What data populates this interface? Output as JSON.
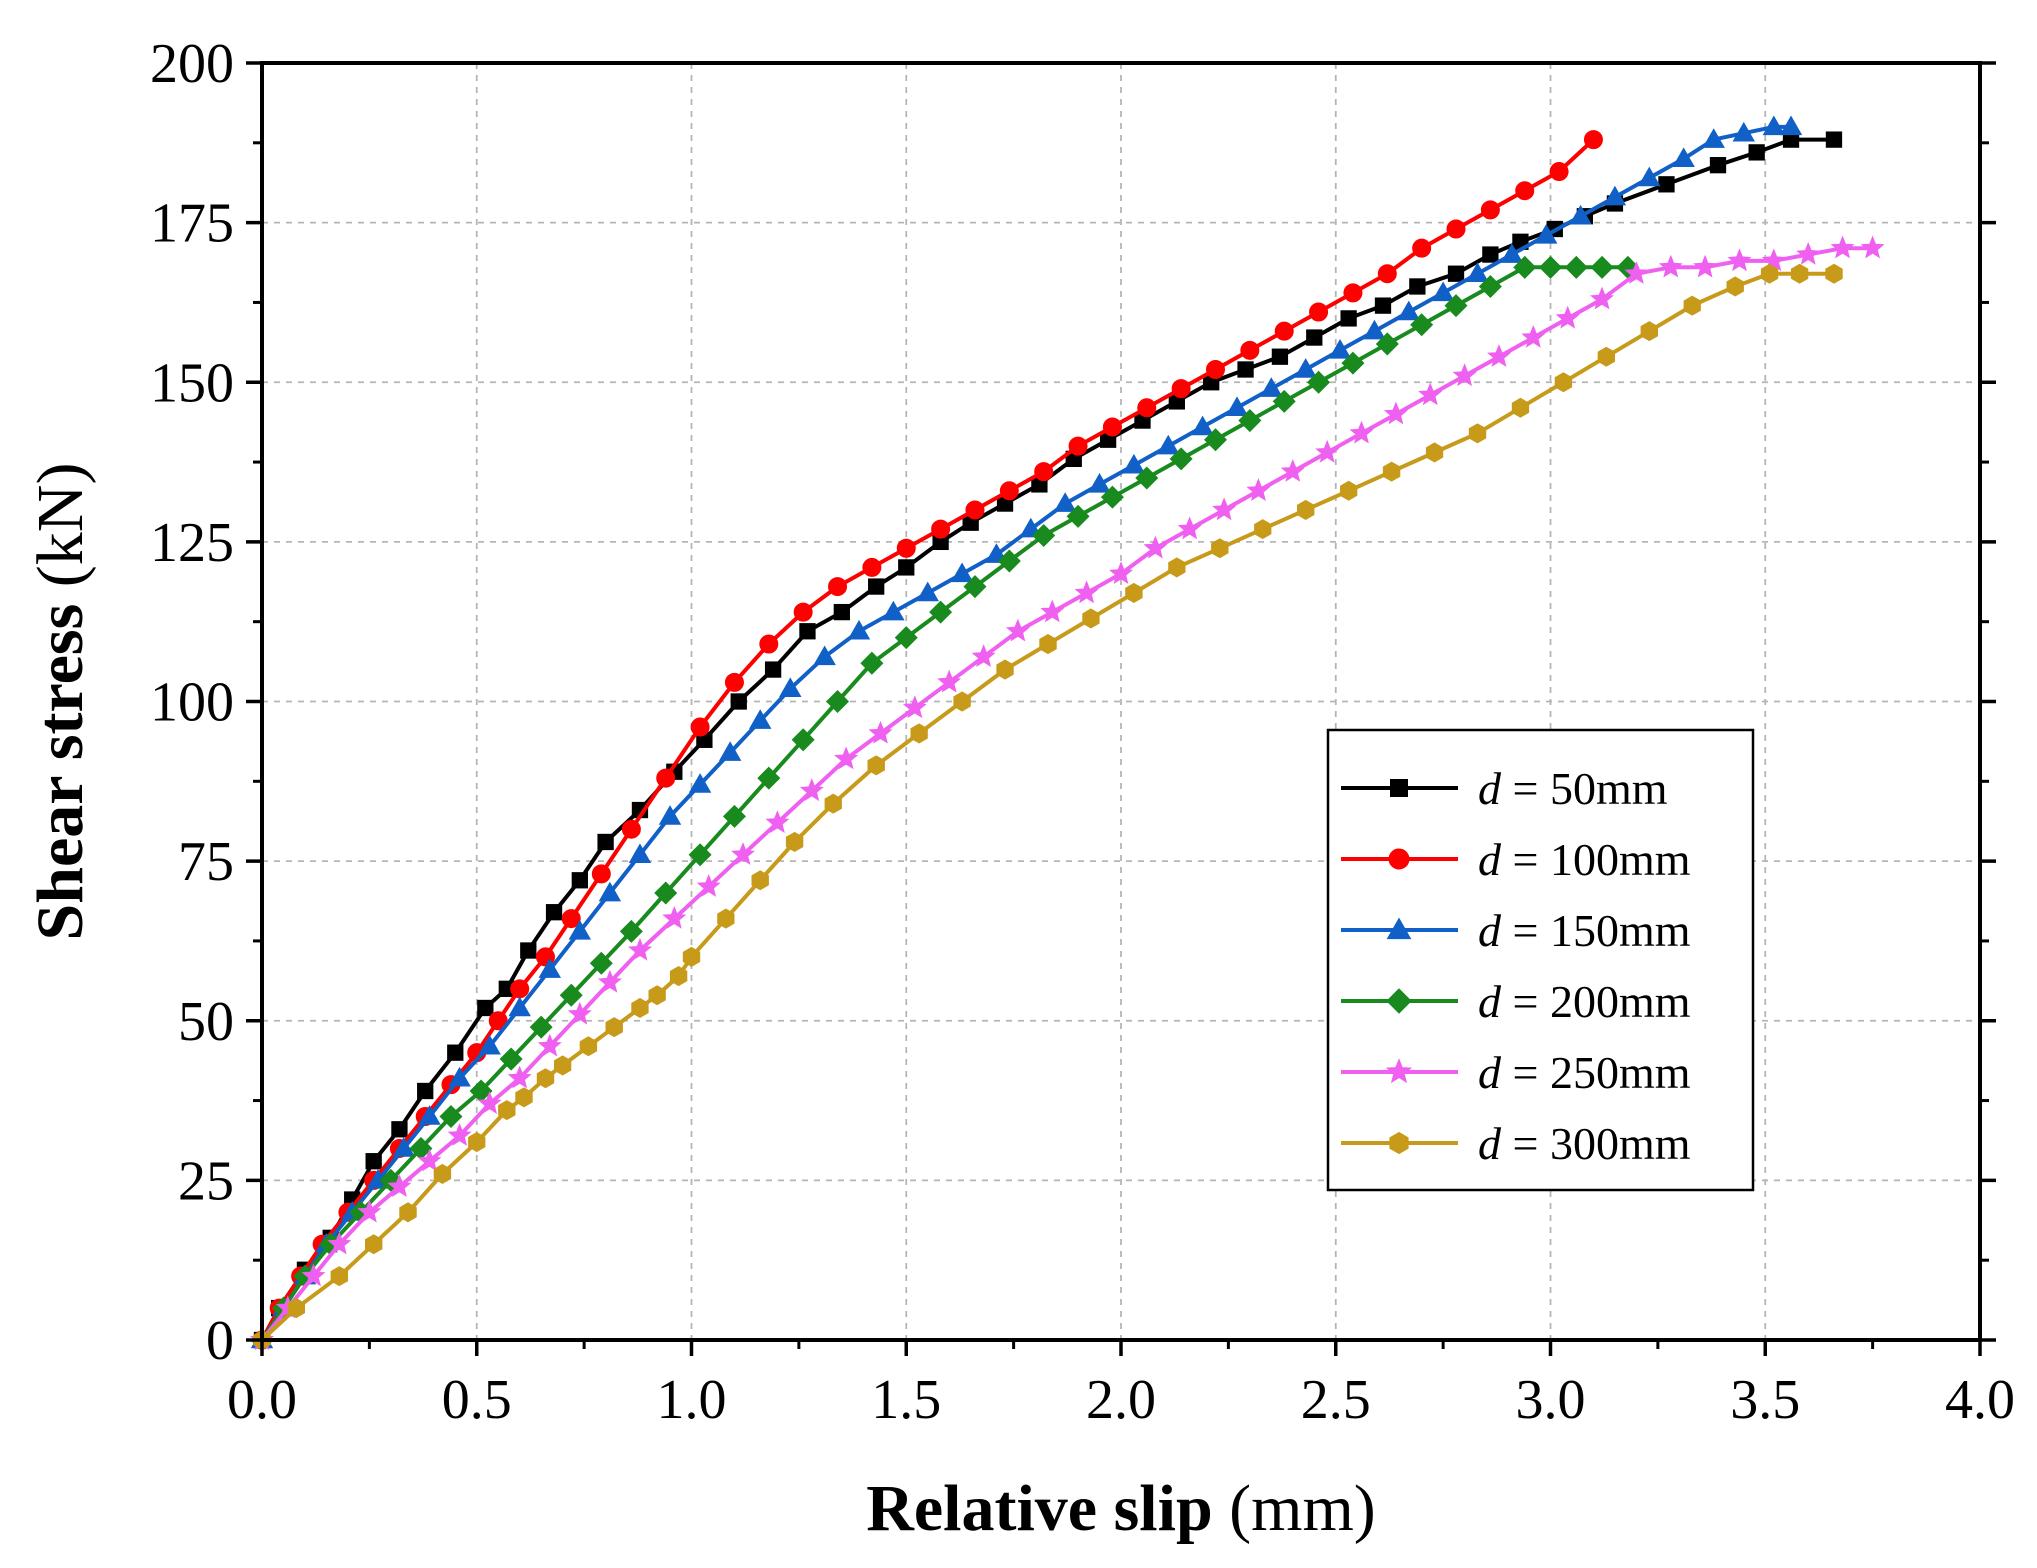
{
  "chart_data": {
    "type": "line",
    "title": "",
    "xlabel_bold": "Relative slip",
    "xlabel_unit": " (mm)",
    "ylabel_bold": "Shear stress",
    "ylabel_unit": " (kN)",
    "xlim": [
      0,
      4.0
    ],
    "ylim": [
      0,
      200
    ],
    "x_ticks": [
      0,
      0.5,
      1.0,
      1.5,
      2.0,
      2.5,
      3.0,
      3.5,
      4.0
    ],
    "x_tick_labels": [
      "0.0",
      "0.5",
      "1.0",
      "1.5",
      "2.0",
      "2.5",
      "3.0",
      "3.5",
      "4.0"
    ],
    "y_ticks": [
      0,
      25,
      50,
      75,
      100,
      125,
      150,
      175,
      200
    ],
    "y_tick_labels": [
      "0",
      "25",
      "50",
      "75",
      "100",
      "125",
      "150",
      "175",
      "200"
    ],
    "grid": true,
    "legend_position": "center-right",
    "series": [
      {
        "name": "d = 50mm",
        "var": "d",
        "rest": " = 50mm",
        "color": "#000000",
        "marker": "square",
        "x": [
          0,
          0.04,
          0.1,
          0.16,
          0.21,
          0.26,
          0.32,
          0.38,
          0.45,
          0.52,
          0.57,
          0.62,
          0.68,
          0.74,
          0.8,
          0.88,
          0.96,
          1.03,
          1.11,
          1.19,
          1.27,
          1.35,
          1.43,
          1.5,
          1.58,
          1.65,
          1.73,
          1.81,
          1.89,
          1.97,
          2.05,
          2.13,
          2.21,
          2.29,
          2.37,
          2.45,
          2.53,
          2.61,
          2.69,
          2.78,
          2.86,
          2.93,
          3.01,
          3.08,
          3.15,
          3.27,
          3.39,
          3.48,
          3.56,
          3.66
        ],
        "y": [
          0,
          5,
          11,
          16,
          22,
          28,
          33,
          39,
          45,
          52,
          55,
          61,
          67,
          72,
          78,
          83,
          89,
          94,
          100,
          105,
          111,
          114,
          118,
          121,
          125,
          128,
          131,
          134,
          138,
          141,
          144,
          147,
          150,
          152,
          154,
          157,
          160,
          162,
          165,
          167,
          170,
          172,
          174,
          176,
          178,
          181,
          184,
          186,
          188,
          188
        ]
      },
      {
        "name": "d = 100mm",
        "var": "d",
        "rest": " = 100mm",
        "color": "#ff0000",
        "marker": "circle",
        "x": [
          0,
          0.04,
          0.09,
          0.14,
          0.2,
          0.26,
          0.32,
          0.38,
          0.44,
          0.5,
          0.55,
          0.6,
          0.66,
          0.72,
          0.79,
          0.86,
          0.94,
          1.02,
          1.1,
          1.18,
          1.26,
          1.34,
          1.42,
          1.5,
          1.58,
          1.66,
          1.74,
          1.82,
          1.9,
          1.98,
          2.06,
          2.14,
          2.22,
          2.3,
          2.38,
          2.46,
          2.54,
          2.62,
          2.7,
          2.78,
          2.86,
          2.94,
          3.02,
          3.1
        ],
        "y": [
          0,
          5,
          10,
          15,
          20,
          25,
          30,
          35,
          40,
          45,
          50,
          55,
          60,
          66,
          73,
          80,
          88,
          96,
          103,
          109,
          114,
          118,
          121,
          124,
          127,
          130,
          133,
          136,
          140,
          143,
          146,
          149,
          152,
          155,
          158,
          161,
          164,
          167,
          171,
          174,
          177,
          180,
          183,
          188
        ]
      },
      {
        "name": "d = 150mm",
        "var": "d",
        "rest": " = 150mm",
        "color": "#1060c8",
        "marker": "triangle",
        "x": [
          0,
          0.05,
          0.1,
          0.15,
          0.21,
          0.27,
          0.33,
          0.39,
          0.46,
          0.53,
          0.6,
          0.67,
          0.74,
          0.81,
          0.88,
          0.95,
          1.02,
          1.09,
          1.16,
          1.23,
          1.31,
          1.39,
          1.47,
          1.55,
          1.63,
          1.71,
          1.79,
          1.87,
          1.95,
          2.03,
          2.11,
          2.19,
          2.27,
          2.35,
          2.43,
          2.51,
          2.59,
          2.67,
          2.75,
          2.83,
          2.91,
          2.99,
          3.07,
          3.15,
          3.23,
          3.31,
          3.38,
          3.45,
          3.52,
          3.56
        ],
        "y": [
          0,
          5,
          10,
          15,
          20,
          25,
          30,
          35,
          41,
          46,
          52,
          58,
          64,
          70,
          76,
          82,
          87,
          92,
          97,
          102,
          107,
          111,
          114,
          117,
          120,
          123,
          127,
          131,
          134,
          137,
          140,
          143,
          146,
          149,
          152,
          155,
          158,
          161,
          164,
          167,
          170,
          173,
          176,
          179,
          182,
          185,
          188,
          189,
          190,
          190
        ]
      },
      {
        "name": "d = 200mm",
        "var": "d",
        "rest": " = 200mm",
        "color": "#188a1e",
        "marker": "diamond",
        "x": [
          0,
          0.05,
          0.1,
          0.16,
          0.23,
          0.3,
          0.37,
          0.44,
          0.51,
          0.58,
          0.65,
          0.72,
          0.79,
          0.86,
          0.94,
          1.02,
          1.1,
          1.18,
          1.26,
          1.34,
          1.42,
          1.5,
          1.58,
          1.66,
          1.74,
          1.82,
          1.9,
          1.98,
          2.06,
          2.14,
          2.22,
          2.3,
          2.38,
          2.46,
          2.54,
          2.62,
          2.7,
          2.78,
          2.86,
          2.94,
          3.0,
          3.06,
          3.12,
          3.18
        ],
        "y": [
          0,
          5,
          10,
          15,
          20,
          25,
          30,
          35,
          39,
          44,
          49,
          54,
          59,
          64,
          70,
          76,
          82,
          88,
          94,
          100,
          106,
          110,
          114,
          118,
          122,
          126,
          129,
          132,
          135,
          138,
          141,
          144,
          147,
          150,
          153,
          156,
          159,
          162,
          165,
          168,
          168,
          168,
          168,
          168
        ]
      },
      {
        "name": "d = 250mm",
        "var": "d",
        "rest": " = 250mm",
        "color": "#f060f0",
        "marker": "star",
        "x": [
          0,
          0.06,
          0.12,
          0.18,
          0.25,
          0.32,
          0.39,
          0.46,
          0.53,
          0.6,
          0.67,
          0.74,
          0.81,
          0.88,
          0.96,
          1.04,
          1.12,
          1.2,
          1.28,
          1.36,
          1.44,
          1.52,
          1.6,
          1.68,
          1.76,
          1.84,
          1.92,
          2.0,
          2.08,
          2.16,
          2.24,
          2.32,
          2.4,
          2.48,
          2.56,
          2.64,
          2.72,
          2.8,
          2.88,
          2.96,
          3.04,
          3.12,
          3.2,
          3.28,
          3.36,
          3.44,
          3.52,
          3.6,
          3.68,
          3.75
        ],
        "y": [
          0,
          5,
          10,
          15,
          20,
          24,
          28,
          32,
          37,
          41,
          46,
          51,
          56,
          61,
          66,
          71,
          76,
          81,
          86,
          91,
          95,
          99,
          103,
          107,
          111,
          114,
          117,
          120,
          124,
          127,
          130,
          133,
          136,
          139,
          142,
          145,
          148,
          151,
          154,
          157,
          160,
          163,
          167,
          168,
          168,
          169,
          169,
          170,
          171,
          171
        ]
      },
      {
        "name": "d = 300mm",
        "var": "d",
        "rest": " = 300mm",
        "color": "#c89a1a",
        "marker": "hexagon",
        "x": [
          0,
          0.08,
          0.18,
          0.26,
          0.34,
          0.42,
          0.5,
          0.57,
          0.61,
          0.66,
          0.7,
          0.76,
          0.82,
          0.88,
          0.92,
          0.97,
          1.0,
          1.08,
          1.16,
          1.24,
          1.33,
          1.43,
          1.53,
          1.63,
          1.73,
          1.83,
          1.93,
          2.03,
          2.13,
          2.23,
          2.33,
          2.43,
          2.53,
          2.63,
          2.73,
          2.83,
          2.93,
          3.03,
          3.13,
          3.23,
          3.33,
          3.43,
          3.51,
          3.58,
          3.66
        ],
        "y": [
          0,
          5,
          10,
          15,
          20,
          26,
          31,
          36,
          38,
          41,
          43,
          46,
          49,
          52,
          54,
          57,
          60,
          66,
          72,
          78,
          84,
          90,
          95,
          100,
          105,
          109,
          113,
          117,
          121,
          124,
          127,
          130,
          133,
          136,
          139,
          142,
          146,
          150,
          154,
          158,
          162,
          165,
          167,
          167,
          167
        ]
      }
    ]
  }
}
